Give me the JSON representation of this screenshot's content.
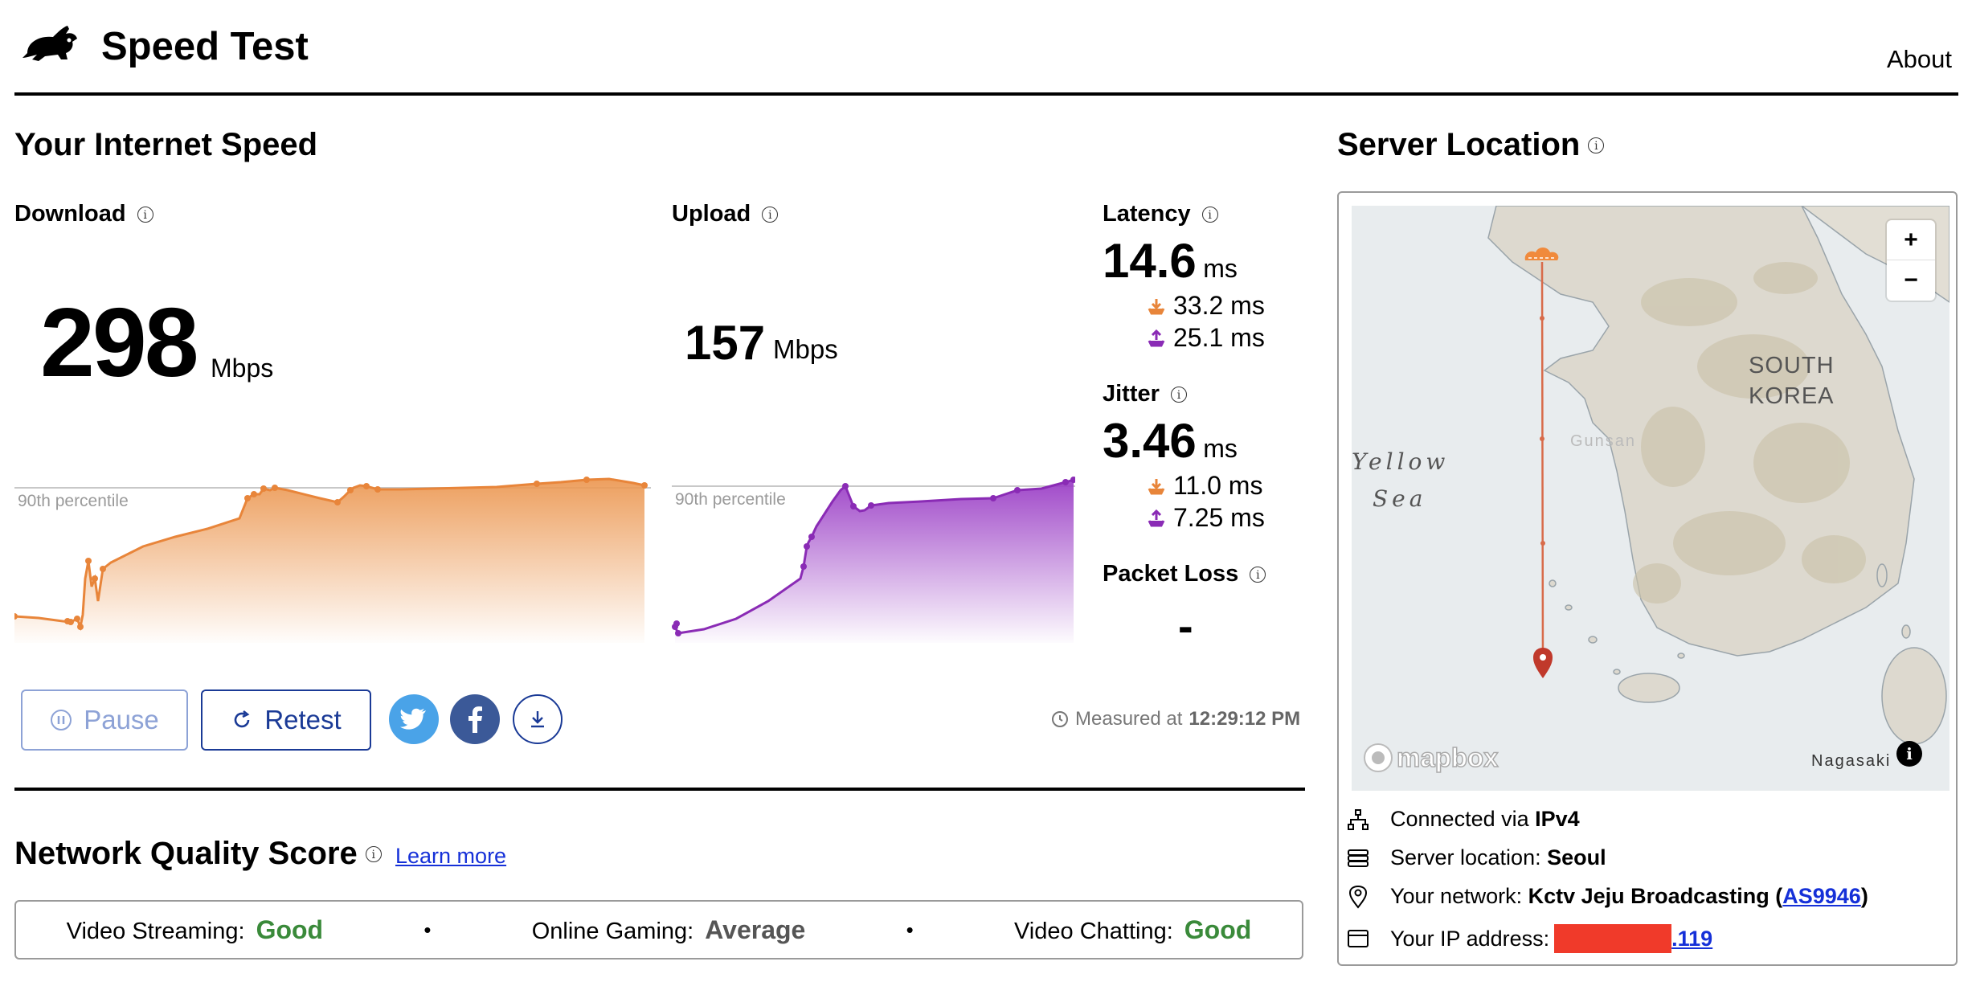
{
  "header": {
    "title": "Speed Test",
    "about": "About"
  },
  "speed": {
    "heading": "Your Internet Speed",
    "download": {
      "label": "Download",
      "value": "298",
      "unit": "Mbps",
      "percentile_label": "90th percentile",
      "color": "#e8853a"
    },
    "upload": {
      "label": "Upload",
      "value": "157",
      "unit": "Mbps",
      "percentile_label": "90th percentile",
      "color": "#8a2bb5"
    },
    "latency": {
      "label": "Latency",
      "value": "14.6",
      "unit": "ms",
      "down": "33.2 ms",
      "up": "25.1 ms"
    },
    "jitter": {
      "label": "Jitter",
      "value": "3.46",
      "unit": "ms",
      "down": "11.0 ms",
      "up": "7.25 ms"
    },
    "packet_loss": {
      "label": "Packet Loss",
      "value": "-"
    }
  },
  "controls": {
    "pause": "Pause",
    "retest": "Retest",
    "measured_prefix": "Measured at",
    "measured_time": "12:29:12 PM"
  },
  "quality": {
    "heading": "Network Quality Score",
    "learn_more": "Learn more",
    "items": [
      {
        "label": "Video Streaming:",
        "value": "Good",
        "color": "#3a8a3a"
      },
      {
        "label": "Online Gaming:",
        "value": "Average",
        "color": "#555555"
      },
      {
        "label": "Video Chatting:",
        "value": "Good",
        "color": "#3a8a3a"
      }
    ],
    "separator": "•"
  },
  "server": {
    "heading": "Server Location",
    "map_labels": {
      "country_line1": "SOUTH",
      "country_line2": "KOREA",
      "sea_line1": "Yellow",
      "sea_line2": "Sea",
      "gunsan": "Gunsan",
      "nagasaki": "Nagasaki",
      "mapbox": "mapbox",
      "zoom_in": "+",
      "zoom_out": "−"
    },
    "connected_prefix": "Connected via",
    "connected_value": "IPv4",
    "location_prefix": "Server location:",
    "location_value": "Seoul",
    "network_prefix": "Your network:",
    "network_value": "Kctv Jeju Broadcasting",
    "network_as": "AS9946",
    "ip_prefix": "Your IP address:",
    "ip_suffix": ".119",
    "redaction_color": "#f03a2a"
  }
}
